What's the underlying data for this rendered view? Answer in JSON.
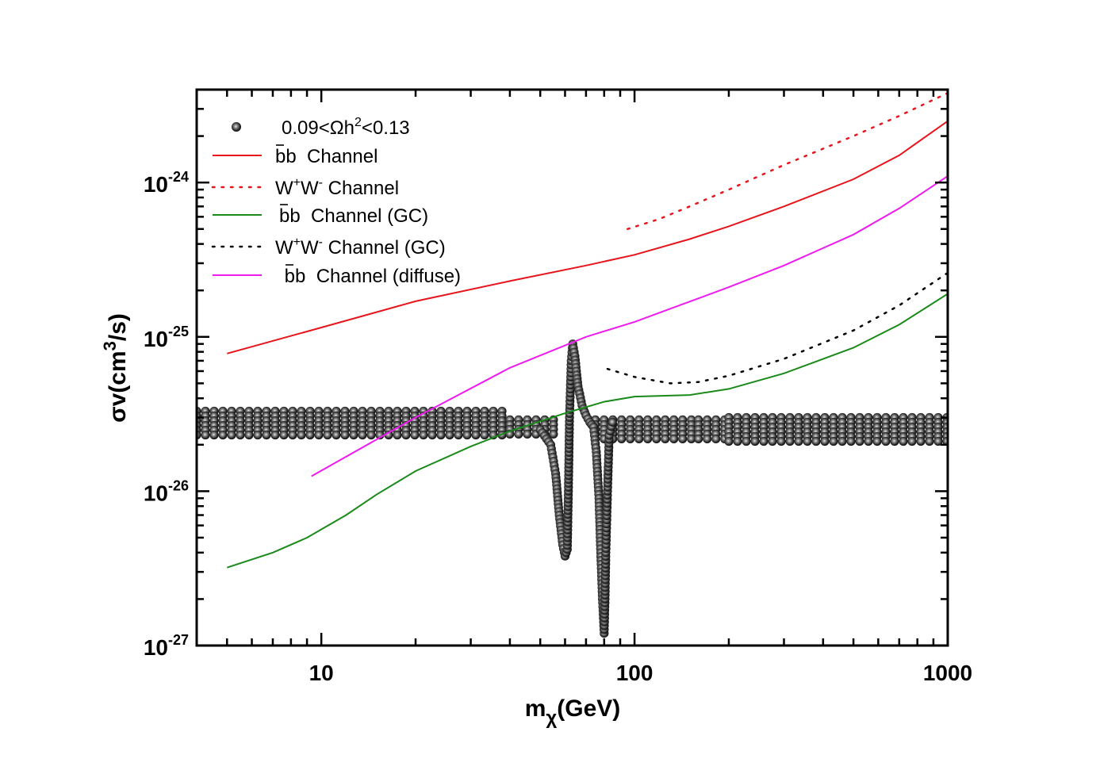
{
  "chart_data": {
    "type": "scatter",
    "xscale": "log",
    "yscale": "log",
    "xlim": [
      4,
      1000
    ],
    "ylim": [
      1e-27,
      4e-24
    ],
    "xticks": [
      {
        "value": 10,
        "label": "10"
      },
      {
        "value": 100,
        "label": "100"
      },
      {
        "value": 1000,
        "label": "1000"
      }
    ],
    "yticks": [
      {
        "value": 1e-27,
        "base": "10",
        "exp": "-27"
      },
      {
        "value": 1e-26,
        "base": "10",
        "exp": "-26"
      },
      {
        "value": 1e-25,
        "base": "10",
        "exp": "-25"
      },
      {
        "value": 1e-24,
        "base": "10",
        "exp": "-24"
      }
    ],
    "xlabel": {
      "main": "m",
      "sub": "χ",
      "rest": "(GeV)"
    },
    "ylabel": {
      "main": "σv(cm",
      "sup": "3",
      "rest": "/s)"
    },
    "legend_position": "top-left",
    "series": [
      {
        "name": "0.09<Ωh²<0.13",
        "legend": {
          "pre": "0.09<Ωh",
          "sup": "2",
          "post": "<0.13"
        },
        "style": "scatter",
        "color": "#000000",
        "bands": [
          {
            "x": [
              4,
              40
            ],
            "ylow": 2.3e-26,
            "yhigh": 3.3e-26
          },
          {
            "x": [
              40,
              58
            ],
            "ylow": 2.2e-26,
            "yhigh": 2.9e-26
          },
          {
            "x": [
              75,
              160
            ],
            "ylow": 2.1e-26,
            "yhigh": 2.9e-26
          },
          {
            "x": [
              160,
              200
            ],
            "ylow": 2.1e-26,
            "yhigh": 2.9e-26
          },
          {
            "x": [
              200,
              1000
            ],
            "ylow": 2e-26,
            "yhigh": 3e-26
          }
        ],
        "curve": [
          [
            50,
            2.5e-26
          ],
          [
            54,
            2e-26
          ],
          [
            56,
            1.3e-26
          ],
          [
            57.5,
            7e-27
          ],
          [
            59,
            4.5e-27
          ],
          [
            60,
            3.8e-27
          ],
          [
            61,
            4.2e-27
          ],
          [
            61.5,
            1e-26
          ],
          [
            62,
            3e-26
          ],
          [
            62.8,
            7e-26
          ],
          [
            63.5,
            9e-26
          ],
          [
            64.5,
            7.5e-26
          ],
          [
            66,
            4.8e-26
          ],
          [
            68,
            3.6e-26
          ],
          [
            70,
            3.1e-26
          ],
          [
            72,
            2.8e-26
          ],
          [
            74,
            2.6e-26
          ],
          [
            75.5,
            1.8e-26
          ],
          [
            77,
            9e-27
          ],
          [
            78,
            4e-27
          ],
          [
            79,
            2e-27
          ],
          [
            80,
            1.2e-27
          ],
          [
            80.5,
            2e-27
          ],
          [
            81,
            4e-27
          ],
          [
            82,
            1e-26
          ],
          [
            83,
            2.3e-26
          ],
          [
            85,
            2.8e-26
          ]
        ]
      },
      {
        "name": "bb  Channel",
        "style": "solid",
        "color": "#e8141b",
        "points": [
          [
            5,
            7.8e-26
          ],
          [
            10,
            1.15e-25
          ],
          [
            20,
            1.7e-25
          ],
          [
            40,
            2.3e-25
          ],
          [
            70,
            2.9e-25
          ],
          [
            100,
            3.4e-25
          ],
          [
            150,
            4.3e-25
          ],
          [
            200,
            5.2e-25
          ],
          [
            300,
            7e-25
          ],
          [
            500,
            1.05e-24
          ],
          [
            700,
            1.5e-24
          ],
          [
            1000,
            2.5e-24
          ]
        ]
      },
      {
        "name": "W W  Channel",
        "legend": {
          "pre": "W",
          "sup1": "+",
          "mid": "W",
          "sup2": "-",
          "post": " Channel"
        },
        "style": "dotted",
        "color": "#e8141b",
        "points": [
          [
            95,
            5e-25
          ],
          [
            120,
            5.8e-25
          ],
          [
            150,
            7e-25
          ],
          [
            200,
            9e-25
          ],
          [
            300,
            1.3e-24
          ],
          [
            500,
            2e-24
          ],
          [
            700,
            2.7e-24
          ],
          [
            1000,
            3.8e-24
          ]
        ]
      },
      {
        "name": "bb  Channel (GC)",
        "style": "solid",
        "color": "#1a8a1a",
        "points": [
          [
            5,
            3.2e-27
          ],
          [
            7,
            4e-27
          ],
          [
            9,
            5e-27
          ],
          [
            12,
            7e-27
          ],
          [
            15,
            9.5e-27
          ],
          [
            20,
            1.35e-26
          ],
          [
            30,
            1.95e-26
          ],
          [
            40,
            2.45e-26
          ],
          [
            60,
            3.2e-26
          ],
          [
            80,
            3.8e-26
          ],
          [
            100,
            4.1e-26
          ],
          [
            150,
            4.2e-26
          ],
          [
            200,
            4.6e-26
          ],
          [
            300,
            5.8e-26
          ],
          [
            500,
            8.5e-26
          ],
          [
            700,
            1.2e-25
          ],
          [
            1000,
            1.9e-25
          ]
        ]
      },
      {
        "name": "W W  Channel (GC)",
        "legend": {
          "pre": "W",
          "sup1": "+",
          "mid": "W",
          "sup2": "-",
          "post": " Channel (GC)"
        },
        "style": "dotted",
        "color": "#000000",
        "points": [
          [
            82,
            6.2e-26
          ],
          [
            100,
            5.5e-26
          ],
          [
            130,
            5e-26
          ],
          [
            160,
            5.1e-26
          ],
          [
            200,
            5.6e-26
          ],
          [
            300,
            7.2e-26
          ],
          [
            500,
            1.1e-25
          ],
          [
            700,
            1.6e-25
          ],
          [
            1000,
            2.6e-25
          ]
        ]
      },
      {
        "name": " bb  Channel (diffuse)",
        "style": "solid",
        "color": "#ee1cee",
        "points": [
          [
            9.3,
            1.25e-26
          ],
          [
            20,
            3e-26
          ],
          [
            40,
            6.3e-26
          ],
          [
            70,
            1e-25
          ],
          [
            100,
            1.25e-25
          ],
          [
            200,
            2.1e-25
          ],
          [
            300,
            2.9e-25
          ],
          [
            500,
            4.6e-25
          ],
          [
            700,
            6.8e-25
          ],
          [
            1000,
            1.1e-24
          ]
        ]
      }
    ]
  }
}
